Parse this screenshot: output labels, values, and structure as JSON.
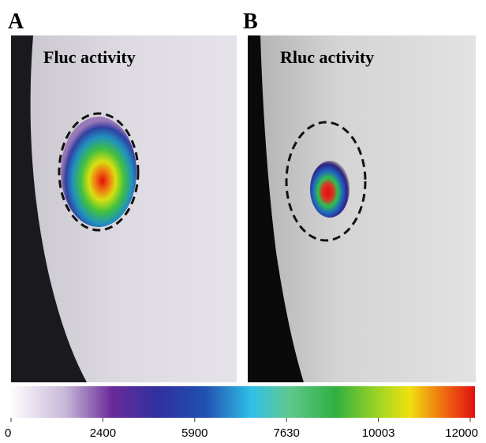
{
  "panels": [
    {
      "label": "A",
      "title": "Fluc activity"
    },
    {
      "label": "B",
      "title": "Rluc activity"
    }
  ],
  "colorbar": {
    "ticks": [
      0,
      2400,
      5900,
      7630,
      10003,
      12000
    ]
  }
}
